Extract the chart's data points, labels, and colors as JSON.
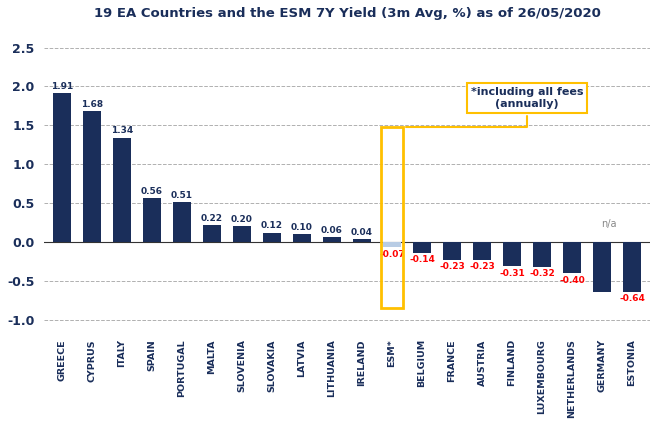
{
  "title": "19 EA Countries and the ESM 7Y Yield (3m Avg, %) as of 26/05/2020",
  "categories": [
    "GREECE",
    "CYPRUS",
    "ITALY",
    "SPAIN",
    "PORTUGAL",
    "MALTA",
    "SLOVENIA",
    "SLOVAKIA",
    "LATVIA",
    "LITHUANIA",
    "IRELAND",
    "ESM*",
    "BELGIUM",
    "FRANCE",
    "AUSTRIA",
    "FINLAND",
    "LUXEMBOURG",
    "NETHERLANDS",
    "GERMANY",
    "ESTONIA"
  ],
  "values": [
    1.91,
    1.68,
    1.34,
    0.56,
    0.51,
    0.22,
    0.2,
    0.12,
    0.1,
    0.06,
    0.04,
    -0.07,
    -0.14,
    -0.23,
    -0.23,
    -0.31,
    -0.32,
    -0.4,
    -0.64,
    -0.64
  ],
  "bar_color": "#1a2e5a",
  "esm_bar_color": "#b8cce4",
  "esm_border_color": "#ffc000",
  "label_color_positive": "#1a2e5a",
  "label_color_negative": "#ff0000",
  "label_color_esm": "#ff0000",
  "ylim": [
    -1.15,
    2.75
  ],
  "yticks": [
    -1.0,
    -0.5,
    0.0,
    0.5,
    1.0,
    1.5,
    2.0,
    2.5
  ],
  "background_color": "#ffffff",
  "grid_color": "#b0b0b0",
  "title_color": "#1a2e5a",
  "annotation_text": "*including all fees\n(annually)",
  "annotation_box_color": "#ffffff",
  "annotation_border_color": "#ffc000",
  "esm_index": 11,
  "estonia_index": 19,
  "estonia_label": "n/a",
  "estonia_na_color": "#888888"
}
